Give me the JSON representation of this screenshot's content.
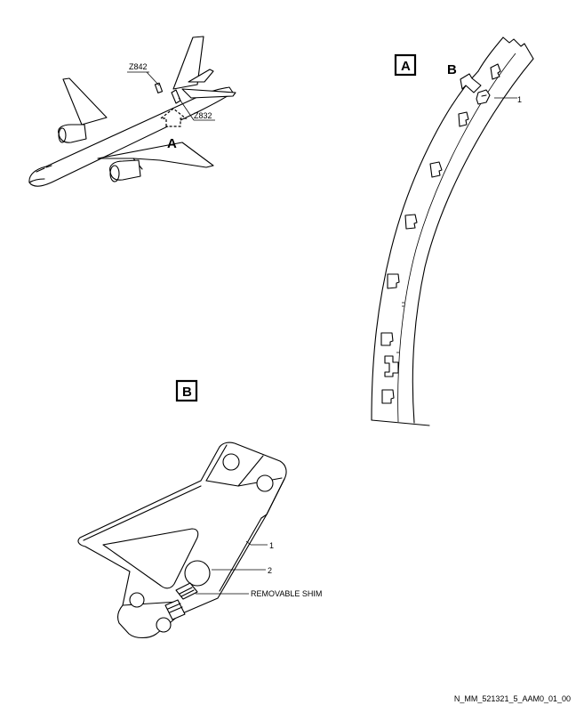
{
  "aircraft_view": {
    "zone_upper": "Z842",
    "zone_lower": "Z832",
    "view_arrow_label": "A"
  },
  "view_a": {
    "box_label": "A",
    "detail_arrow_label": "B",
    "callout_1": "1"
  },
  "view_b": {
    "box_label": "B",
    "callout_1": "1",
    "callout_2": "2",
    "removable_shim": "REMOVABLE SHIM"
  },
  "figure_id": "N_MM_521321_5_AAM0_01_00"
}
